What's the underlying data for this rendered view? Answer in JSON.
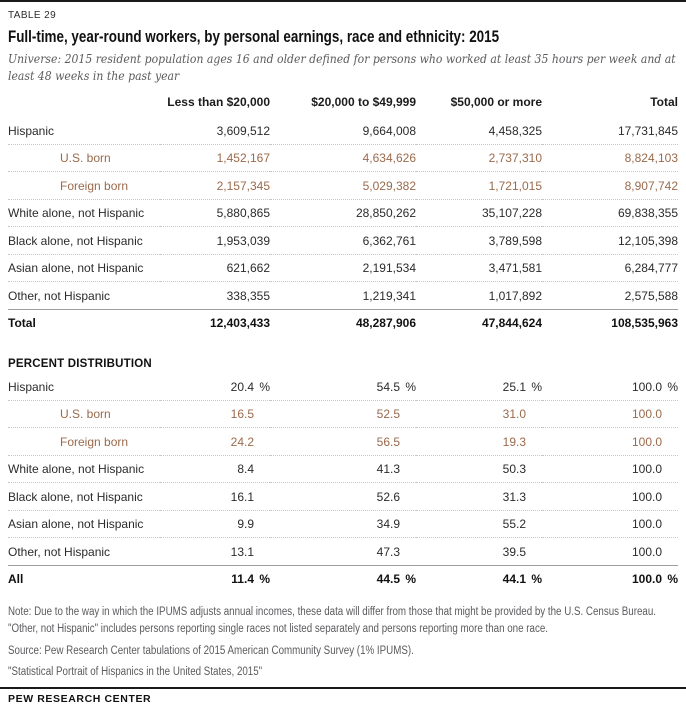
{
  "meta": {
    "table_label": "TABLE 29",
    "title": "Full-time, year-round workers, by personal earnings, race and ethnicity: 2015",
    "universe": "Universe: 2015 resident population ages 16 and older defined for persons who worked at least 35 hours per week and at least 48 weeks in the past year"
  },
  "table": {
    "columns": [
      "Less than $20,000",
      "$20,000 to $49,999",
      "$50,000 or more",
      "Total"
    ],
    "count_rows": [
      {
        "label": "Hispanic",
        "type": "",
        "values": [
          "3,609,512",
          "9,664,008",
          "4,458,325",
          "17,731,845"
        ]
      },
      {
        "label": "U.S. born",
        "type": "sub",
        "values": [
          "1,452,167",
          "4,634,626",
          "2,737,310",
          "8,824,103"
        ]
      },
      {
        "label": "Foreign born",
        "type": "sub",
        "values": [
          "2,157,345",
          "5,029,382",
          "1,721,015",
          "8,907,742"
        ]
      },
      {
        "label": "White alone, not Hispanic",
        "type": "",
        "values": [
          "5,880,865",
          "28,850,262",
          "35,107,228",
          "69,838,355"
        ]
      },
      {
        "label": "Black alone, not Hispanic",
        "type": "",
        "values": [
          "1,953,039",
          "6,362,761",
          "3,789,598",
          "12,105,398"
        ]
      },
      {
        "label": "Asian alone, not Hispanic",
        "type": "",
        "values": [
          "621,662",
          "2,191,534",
          "3,471,581",
          "6,284,777"
        ]
      },
      {
        "label": "Other, not Hispanic",
        "type": "",
        "values": [
          "338,355",
          "1,219,341",
          "1,017,892",
          "2,575,588"
        ]
      },
      {
        "label": "Total",
        "type": "total",
        "values": [
          "12,403,433",
          "48,287,906",
          "47,844,624",
          "108,535,963"
        ]
      }
    ],
    "percent_section_title": "PERCENT DISTRIBUTION",
    "percent_rows": [
      {
        "label": "Hispanic",
        "type": "",
        "suffix": "%",
        "values": [
          "20.4",
          "54.5",
          "25.1",
          "100.0"
        ]
      },
      {
        "label": "U.S. born",
        "type": "sub",
        "suffix": "",
        "values": [
          "16.5",
          "52.5",
          "31.0",
          "100.0"
        ]
      },
      {
        "label": "Foreign born",
        "type": "sub",
        "suffix": "",
        "values": [
          "24.2",
          "56.5",
          "19.3",
          "100.0"
        ]
      },
      {
        "label": "White alone, not Hispanic",
        "type": "",
        "suffix": "",
        "values": [
          "8.4",
          "41.3",
          "50.3",
          "100.0"
        ]
      },
      {
        "label": "Black alone, not Hispanic",
        "type": "",
        "suffix": "",
        "values": [
          "16.1",
          "52.6",
          "31.3",
          "100.0"
        ]
      },
      {
        "label": "Asian alone, not Hispanic",
        "type": "",
        "suffix": "",
        "values": [
          "9.9",
          "34.9",
          "55.2",
          "100.0"
        ]
      },
      {
        "label": "Other, not Hispanic",
        "type": "",
        "suffix": "",
        "values": [
          "13.1",
          "47.3",
          "39.5",
          "100.0"
        ]
      },
      {
        "label": "All",
        "type": "total",
        "suffix": "%",
        "values": [
          "11.4",
          "44.5",
          "44.1",
          "100.0"
        ]
      }
    ]
  },
  "footer": {
    "note": "Note: Due to the way in which the IPUMS adjusts annual incomes, these data will differ from those that might be provided by the U.S. Census Bureau. \"Other, not Hispanic\" includes persons reporting single races not listed separately and persons reporting more than one race.",
    "source": "Source: Pew Research Center tabulations of 2015 American Community Survey (1% IPUMS).",
    "citation": "\"Statistical Portrait of Hispanics in the United States, 2015\"",
    "brand": "PEW RESEARCH CENTER"
  },
  "colors": {
    "sub_row_text": "#9a6a4c",
    "body_text": "#232323",
    "muted_text": "#5b5b5e",
    "dotted_rule": "#c6c6c6",
    "solid_rule": "#9e9e9e",
    "page_rule": "#1a1a1a"
  }
}
